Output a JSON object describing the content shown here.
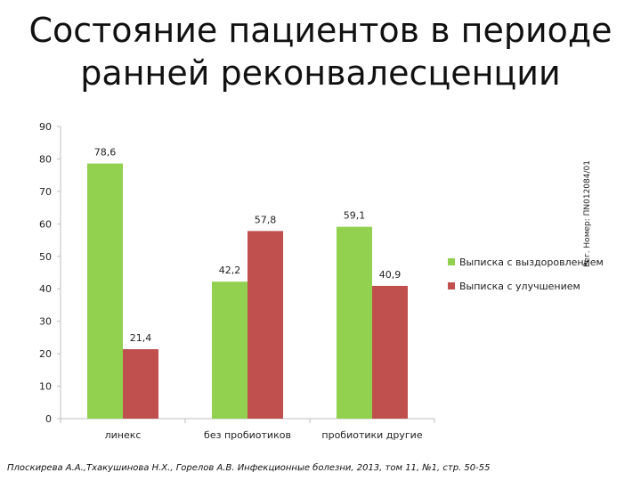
{
  "slide": {
    "title": "Состояние пациентов в периоде\nранней реконвалесценции",
    "side_note": "Рег. Номер: ПN012084/01",
    "citation": "Плоскирева А.А.,Тхакушинова Н.Х., Горелов А.В. Инфекционные болезни, 2013, том 11, №1, стр. 50-55"
  },
  "chart_data": {
    "type": "bar",
    "categories": [
      "линекс",
      "без пробиотиков",
      "пробиотики другие"
    ],
    "series": [
      {
        "name": "Выписка с выздоровлением",
        "values": [
          78.6,
          42.2,
          59.1
        ],
        "labels": [
          "78,6",
          "42,2",
          "59,1"
        ],
        "color": "#92D050"
      },
      {
        "name": "Выписка с улучшением",
        "values": [
          21.4,
          57.8,
          40.9
        ],
        "labels": [
          "21,4",
          "57,8",
          "40,9"
        ],
        "color": "#C0504D"
      }
    ],
    "ylim": [
      0,
      90
    ],
    "yticks": [
      0,
      10,
      20,
      30,
      40,
      50,
      60,
      70,
      80,
      90
    ],
    "grid": false,
    "legend": "right"
  }
}
